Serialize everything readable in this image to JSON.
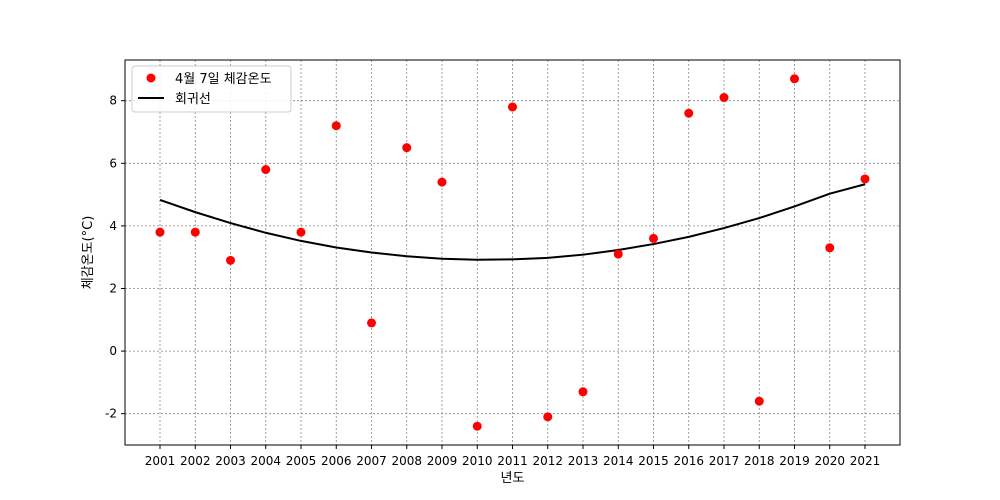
{
  "chart_data": {
    "type": "scatter",
    "title": "",
    "xlabel": "년도",
    "ylabel": "체감온도(°C)",
    "x": [
      "2001",
      "2002",
      "2003",
      "2004",
      "2005",
      "2006",
      "2007",
      "2008",
      "2009",
      "2010",
      "2011",
      "2012",
      "2013",
      "2014",
      "2015",
      "2016",
      "2017",
      "2018",
      "2019",
      "2020",
      "2021"
    ],
    "ylim": [
      -3,
      9.3
    ],
    "yticks": [
      -2,
      0,
      2,
      4,
      6,
      8
    ],
    "ytick_labels": [
      "-2",
      "0",
      "2",
      "4",
      "6",
      "8"
    ],
    "grid": true,
    "legend_position": "top-left",
    "series": [
      {
        "name": "4월 7일 체감온도",
        "kind": "scatter",
        "color": "#ff0000",
        "values": [
          3.8,
          3.8,
          2.9,
          5.8,
          3.8,
          7.2,
          0.9,
          6.5,
          5.4,
          -2.4,
          7.8,
          -2.1,
          -1.3,
          3.1,
          3.6,
          7.6,
          8.1,
          -1.6,
          8.7,
          3.3,
          5.5
        ]
      },
      {
        "name": "회귀선",
        "kind": "line",
        "color": "#000000",
        "values": [
          4.83,
          4.44,
          4.09,
          3.78,
          3.52,
          3.31,
          3.15,
          3.03,
          2.95,
          2.92,
          2.93,
          2.98,
          3.08,
          3.23,
          3.42,
          3.65,
          3.93,
          4.25,
          4.62,
          5.03,
          5.33
        ]
      }
    ]
  }
}
